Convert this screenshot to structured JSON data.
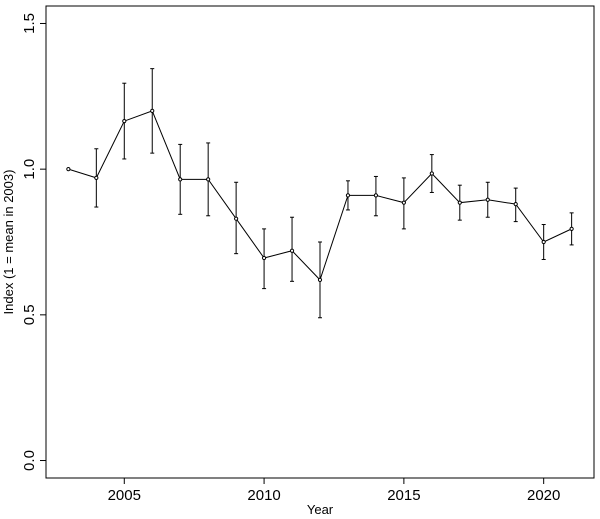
{
  "chart_data": {
    "type": "line",
    "title": "",
    "xlabel": "Year",
    "ylabel": "Index (1 = mean in 2003)",
    "xlim": [
      2002.2,
      2021.8
    ],
    "ylim": [
      -0.06,
      1.56
    ],
    "x_ticks": [
      2005,
      2010,
      2015,
      2020
    ],
    "y_ticks": [
      0.0,
      0.5,
      1.0,
      1.5
    ],
    "x_tick_labels": [
      "2005",
      "2010",
      "2015",
      "2020"
    ],
    "y_tick_labels": [
      "0.0",
      "0.5",
      "1.0",
      "1.5"
    ],
    "grid": false,
    "legend": "none",
    "series": [
      {
        "x": [
          2003,
          2004,
          2005,
          2006,
          2007,
          2008,
          2009,
          2010,
          2011,
          2012,
          2013,
          2014,
          2015,
          2016,
          2017,
          2018,
          2019,
          2020,
          2021
        ],
        "values": [
          1.0,
          0.97,
          1.165,
          1.2,
          0.965,
          0.965,
          0.83,
          0.695,
          0.72,
          0.62,
          0.91,
          0.91,
          0.885,
          0.985,
          0.885,
          0.895,
          0.88,
          0.75,
          0.795
        ],
        "err_low": [
          null,
          0.87,
          1.035,
          1.055,
          0.845,
          0.84,
          0.71,
          0.59,
          0.615,
          0.49,
          0.86,
          0.84,
          0.795,
          0.92,
          0.825,
          0.835,
          0.82,
          0.69,
          0.74
        ],
        "err_high": [
          null,
          1.07,
          1.295,
          1.345,
          1.085,
          1.09,
          0.955,
          0.795,
          0.835,
          0.75,
          0.96,
          0.975,
          0.97,
          1.05,
          0.945,
          0.955,
          0.935,
          0.81,
          0.85
        ]
      }
    ]
  }
}
